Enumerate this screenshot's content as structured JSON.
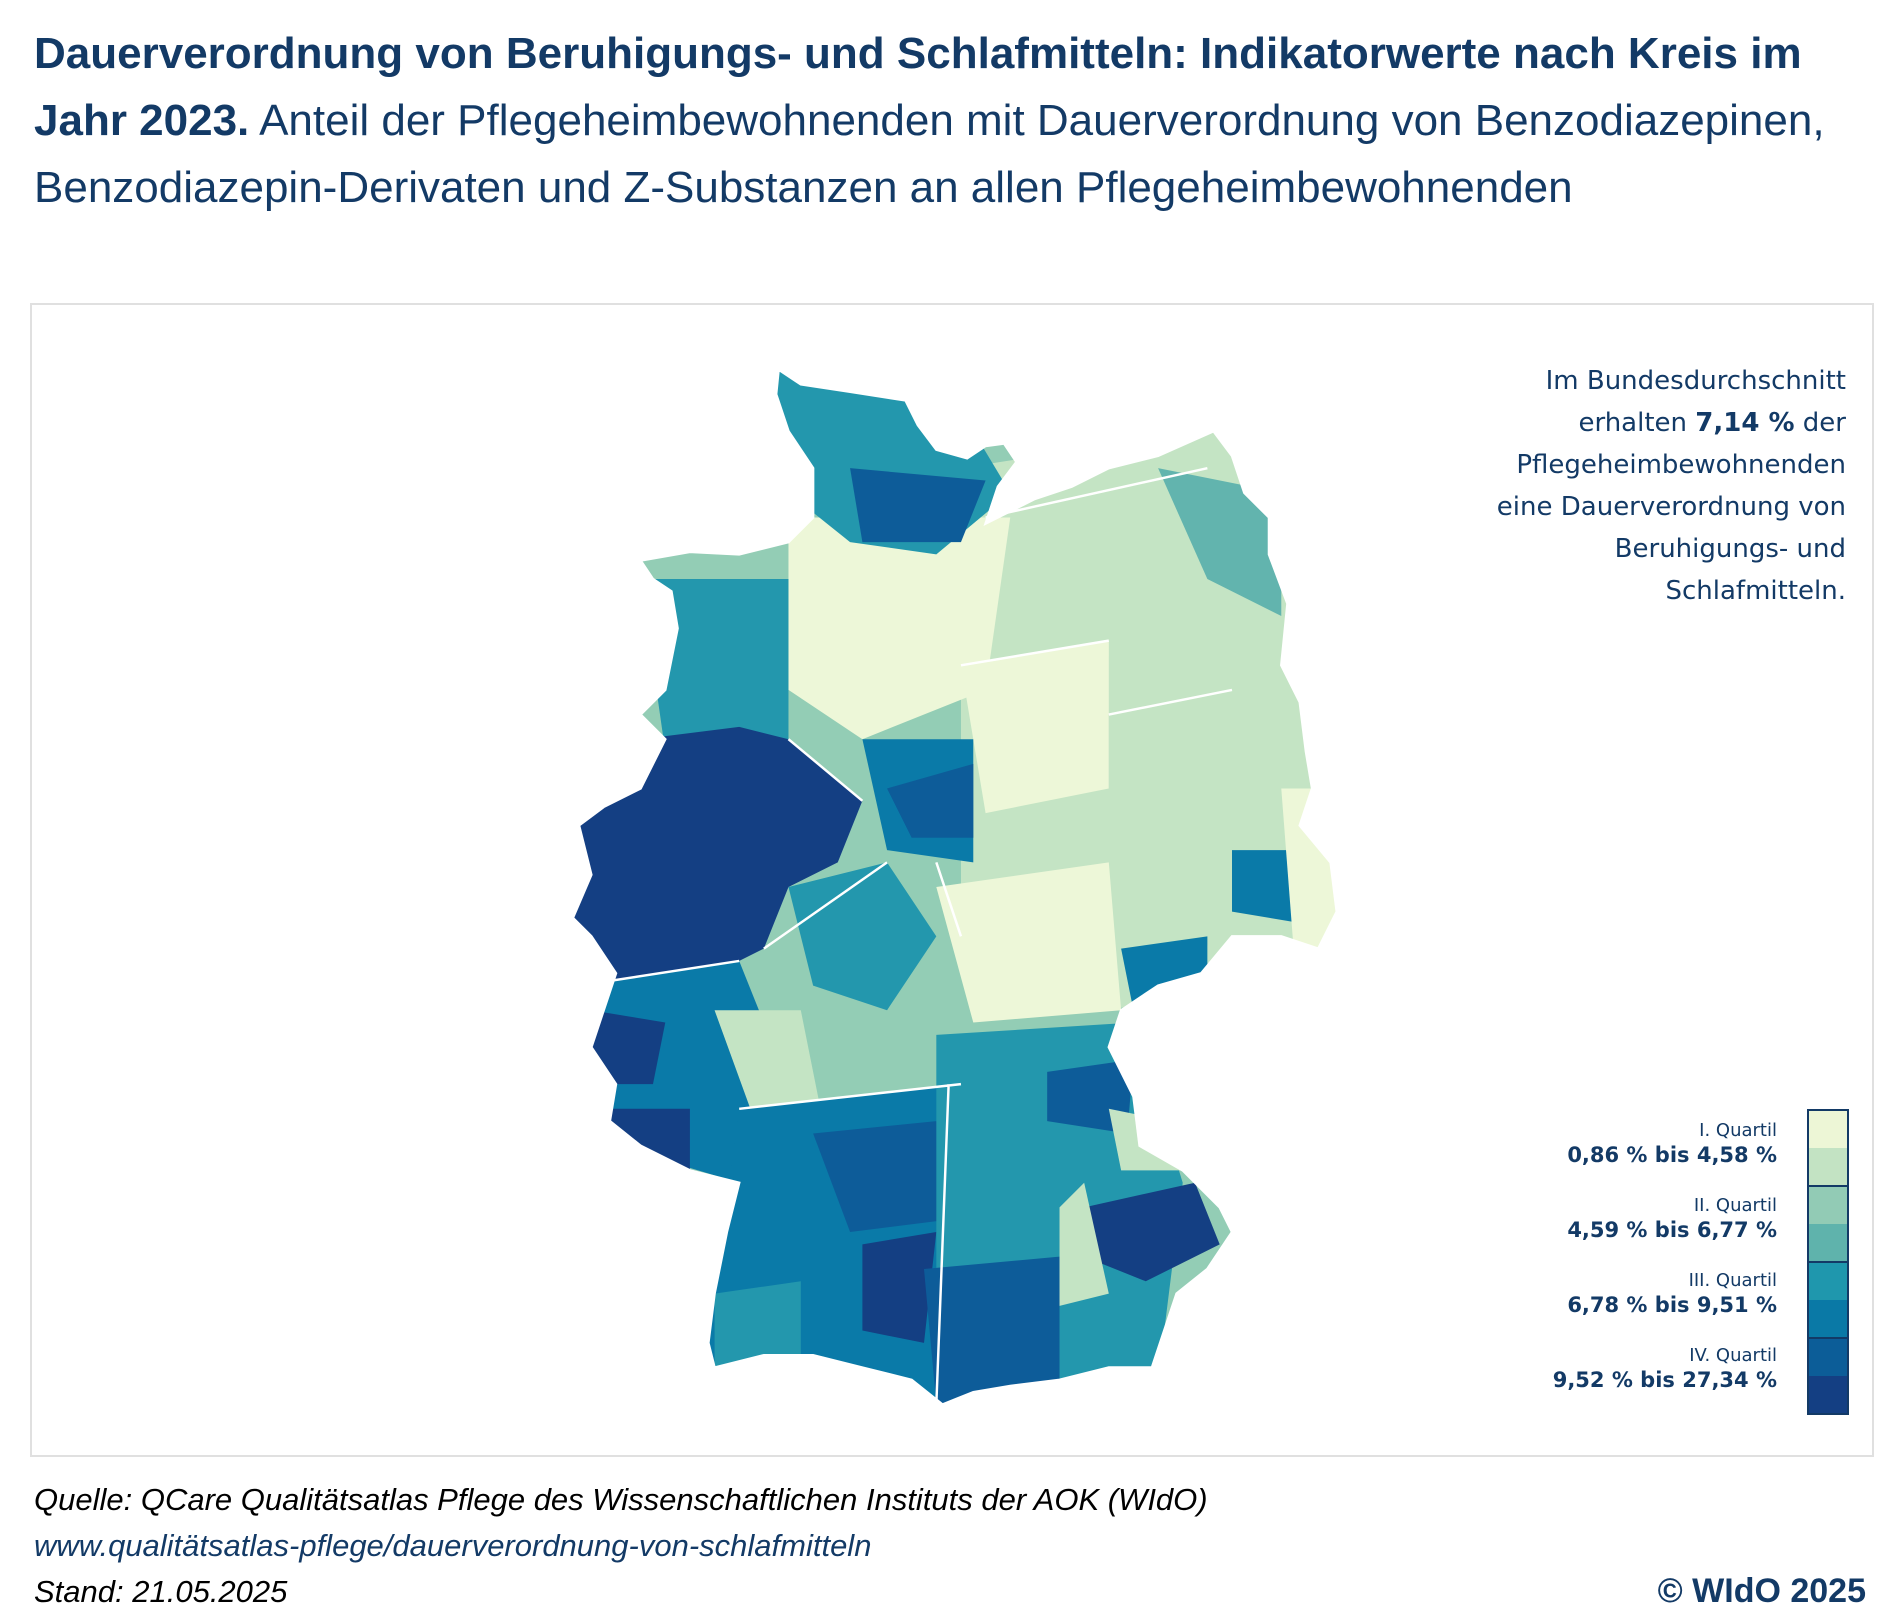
{
  "title": {
    "bold": "Dauerverordnung von Beruhigungs- und Schlafmitteln: Indikatorwerte nach Kreis im Jahr 2023.",
    "regular": " Anteil der Pflegeheimbewohnenden mit Dauerverordnung von Benzodiazepinen, Benzodiazepin-Derivaten und Z-Substanzen an allen Pflegeheimbewohnenden"
  },
  "note": {
    "line1": "Im Bundesdurchschnitt",
    "line2_pre": "erhalten ",
    "line2_value": "7,14 %",
    "line2_post": " der",
    "line3": "Pflegeheimbewohnenden",
    "line4": "eine Dauerverordnung von",
    "line5": "Beruhigungs- und",
    "line6": "Schlafmitteln."
  },
  "legend": [
    {
      "quartile": "I. Quartil",
      "range": "0,86 % bis 4,58 %",
      "colors": [
        "#edf6d6",
        "#c3e3c3"
      ]
    },
    {
      "quartile": "II. Quartil",
      "range": "4,59 % bis 6,77 %",
      "colors": [
        "#92cbb5",
        "#5fb3ac"
      ]
    },
    {
      "quartile": "III. Quartil",
      "range": "6,78 % bis 9,51 %",
      "colors": [
        "#1f97ad",
        "#0a79a6"
      ]
    },
    {
      "quartile": "IV. Quartil",
      "range": "9,52 % bis 27,34 %",
      "colors": [
        "#0c5d98",
        "#143f83"
      ]
    }
  ],
  "footer": {
    "source": "Quelle: QCare Qualitätsatlas Pflege des Wissenschaftlichen Instituts der AOK (WIdO)",
    "url": "www.qualitätsatlas-pflege/dauerverordnung-von-schlafmitteln",
    "date": "Stand: 21.05.2025",
    "copyright": "© WIdO 2025"
  }
}
